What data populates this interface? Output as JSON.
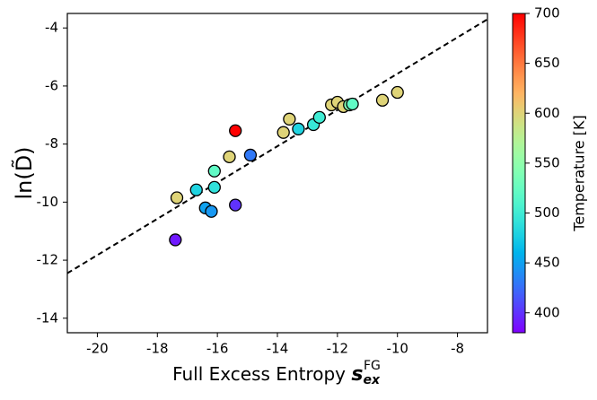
{
  "chart_data": {
    "type": "scatter",
    "xlabel": "Full Excess Entropy",
    "xlabel_symbol": "s",
    "xlabel_sub": "ex",
    "xlabel_sup": "FG",
    "ylabel": "ln(D̃)",
    "x": [
      -17.4,
      -17.35,
      -16.7,
      -16.4,
      -16.2,
      -16.1,
      -16.1,
      -15.6,
      -15.4,
      -15.4,
      -14.9,
      -13.8,
      -13.6,
      -13.3,
      -12.8,
      -12.6,
      -12.2,
      -12.0,
      -11.8,
      -11.6,
      -11.5,
      -10.5,
      -10.0
    ],
    "values": [
      -11.3,
      -9.85,
      -9.58,
      -10.2,
      -10.32,
      -9.49,
      -8.93,
      -8.44,
      -7.54,
      -10.1,
      -8.38,
      -7.6,
      -7.14,
      -7.48,
      -7.33,
      -7.08,
      -6.65,
      -6.56,
      -6.71,
      -6.65,
      -6.62,
      -6.49,
      -6.22
    ],
    "temperature": [
      390,
      600,
      480,
      450,
      445,
      490,
      520,
      600,
      700,
      400,
      430,
      600,
      600,
      480,
      495,
      500,
      600,
      600,
      600,
      540,
      520,
      600,
      600
    ],
    "colormap": "rainbow",
    "fit_line": {
      "x": [
        -21,
        -7
      ],
      "y": [
        -12.45,
        -3.7
      ],
      "color": "#000000"
    },
    "xlim": [
      -21,
      -7
    ],
    "xticks": [
      -20,
      -18,
      -16,
      -14,
      -12,
      -10,
      -8
    ],
    "ylim": [
      -14.5,
      -3.5
    ],
    "yticks": [
      -14,
      -12,
      -10,
      -8,
      -6,
      -4
    ],
    "colorbar": {
      "label": "Temperature [K]",
      "lim": [
        380,
        700
      ],
      "ticks": [
        400,
        450,
        500,
        550,
        600,
        650,
        700
      ]
    }
  }
}
